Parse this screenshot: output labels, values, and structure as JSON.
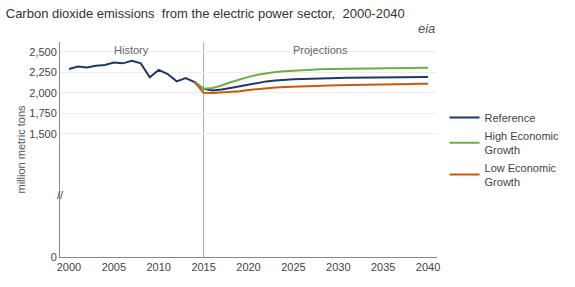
{
  "chart_data": {
    "type": "line",
    "title": "Carbon dioxide emissions  from the electric power sector,  2000-2040",
    "ylabel": "million metric tons",
    "annotations": [
      "History",
      "Projections",
      "//",
      "eia"
    ],
    "divider_x": 2015,
    "series": [
      {
        "name": "Reference",
        "color": "#1f3864",
        "x": [
          2000,
          2001,
          2002,
          2003,
          2004,
          2005,
          2006,
          2007,
          2008,
          2009,
          2010,
          2011,
          2012,
          2013,
          2014,
          2015,
          2016,
          2017,
          2018,
          2019,
          2020,
          2021,
          2022,
          2023,
          2024,
          2025,
          2026,
          2027,
          2028,
          2029,
          2030,
          2031,
          2032,
          2033,
          2034,
          2035,
          2036,
          2037,
          2038,
          2039,
          2040
        ],
        "values": [
          2290,
          2320,
          2310,
          2330,
          2340,
          2370,
          2360,
          2390,
          2360,
          2190,
          2280,
          2230,
          2140,
          2180,
          2130,
          2050,
          2030,
          2040,
          2060,
          2080,
          2100,
          2120,
          2140,
          2150,
          2160,
          2165,
          2170,
          2175,
          2178,
          2180,
          2182,
          2184,
          2185,
          2186,
          2187,
          2188,
          2190,
          2191,
          2192,
          2193,
          2195
        ]
      },
      {
        "name": "High Economic\nGrowth",
        "color": "#70ad47",
        "x": [
          2014,
          2015,
          2016,
          2017,
          2018,
          2019,
          2020,
          2021,
          2022,
          2023,
          2024,
          2025,
          2026,
          2027,
          2028,
          2029,
          2030,
          2031,
          2032,
          2033,
          2034,
          2035,
          2036,
          2037,
          2038,
          2039,
          2040
        ],
        "values": [
          2130,
          2050,
          2060,
          2090,
          2130,
          2165,
          2195,
          2220,
          2240,
          2255,
          2265,
          2272,
          2278,
          2283,
          2287,
          2290,
          2292,
          2294,
          2296,
          2297,
          2299,
          2300,
          2301,
          2302,
          2303,
          2303,
          2305
        ]
      },
      {
        "name": "Low Economic\nGrowth",
        "color": "#c55a11",
        "x": [
          2014,
          2015,
          2016,
          2017,
          2018,
          2019,
          2020,
          2021,
          2022,
          2023,
          2024,
          2025,
          2026,
          2027,
          2028,
          2029,
          2030,
          2031,
          2032,
          2033,
          2034,
          2035,
          2036,
          2037,
          2038,
          2039,
          2040
        ],
        "values": [
          2130,
          2000,
          1998,
          2003,
          2010,
          2020,
          2035,
          2048,
          2058,
          2067,
          2073,
          2078,
          2082,
          2085,
          2087,
          2089,
          2092,
          2095,
          2097,
          2099,
          2101,
          2103,
          2105,
          2107,
          2109,
          2110,
          2112
        ]
      }
    ],
    "xlim": [
      1999,
      2041
    ],
    "xticks": [
      2000,
      2005,
      2010,
      2015,
      2020,
      2025,
      2030,
      2035,
      2040
    ],
    "ylim": [
      0,
      2620
    ],
    "yticks": [
      0,
      {
        "value": 1500,
        "label": "1,500"
      },
      {
        "value": 1750,
        "label": "1,750"
      },
      {
        "value": 2000,
        "label": "2,000"
      },
      {
        "value": 2250,
        "label": "2,250"
      },
      {
        "value": 2500,
        "label": "2,500"
      }
    ],
    "grid": true,
    "legend": "right"
  }
}
